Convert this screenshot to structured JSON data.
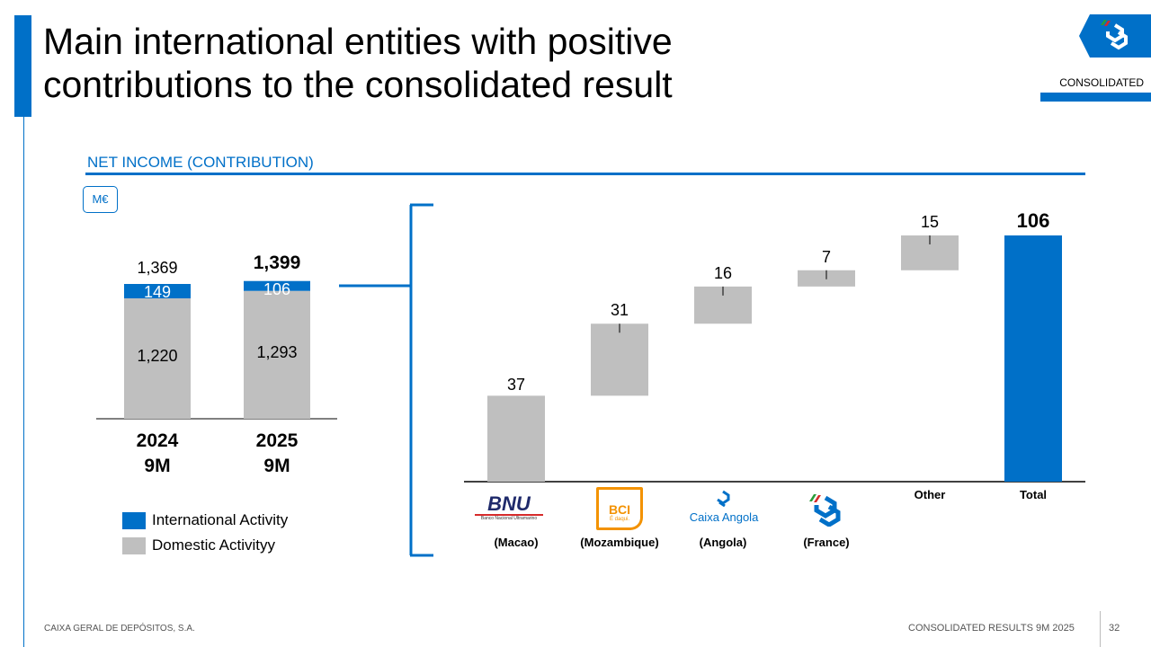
{
  "header": {
    "title": "Main international entities with positive contributions to the consolidated result",
    "tag": "CONSOLIDATED"
  },
  "section_title": "NET INCOME (CONTRIBUTION)",
  "unit": "M€",
  "colors": {
    "brand": "#0070c8",
    "international": "#0070c8",
    "domestic": "#bfbfbf"
  },
  "chart_data": [
    {
      "type": "bar",
      "stacked": true,
      "categories": [
        "2024 9M",
        "2025 9M"
      ],
      "series": [
        {
          "name": "Domestic Activityy",
          "values": [
            1220,
            1293
          ]
        },
        {
          "name": "International Activity",
          "values": [
            149,
            106
          ]
        }
      ],
      "totals": [
        "1,369",
        "1,399"
      ],
      "total_values": [
        1369,
        1399
      ],
      "value_labels": {
        "domestic": [
          "1,220",
          "1,293"
        ],
        "international": [
          "149",
          "106"
        ]
      },
      "cat_lines": [
        [
          "2024",
          "9M"
        ],
        [
          "2025",
          "9M"
        ]
      ],
      "legend": [
        "International Activity",
        "Domestic Activityy"
      ],
      "legend_position": "bottom-left",
      "ylim": [
        0,
        1400
      ]
    },
    {
      "type": "waterfall",
      "categories": [
        "(Macao)",
        "(Mozambique)",
        "(Angola)",
        "(France)",
        "Other",
        "Total"
      ],
      "entities": [
        "BNU",
        "BCI",
        "Caixa Angola",
        "CGD France",
        "",
        ""
      ],
      "values": [
        37,
        31,
        16,
        7,
        15,
        106
      ],
      "value_labels": [
        "37",
        "31",
        "16",
        "7",
        "15",
        "106"
      ],
      "ylim": [
        0,
        106
      ]
    }
  ],
  "footer": {
    "company": "CAIXA GERAL DE DEPÓSITOS, S.A.",
    "report": "CONSOLIDATED RESULTS 9M 2025",
    "page": "32"
  },
  "logos": {
    "bnu": "BNU",
    "bnu_sub": "Banco Nacional Ultramarino",
    "bci": "BCI",
    "bci_sub": "É daqui.",
    "angola": "Caixa Angola"
  }
}
